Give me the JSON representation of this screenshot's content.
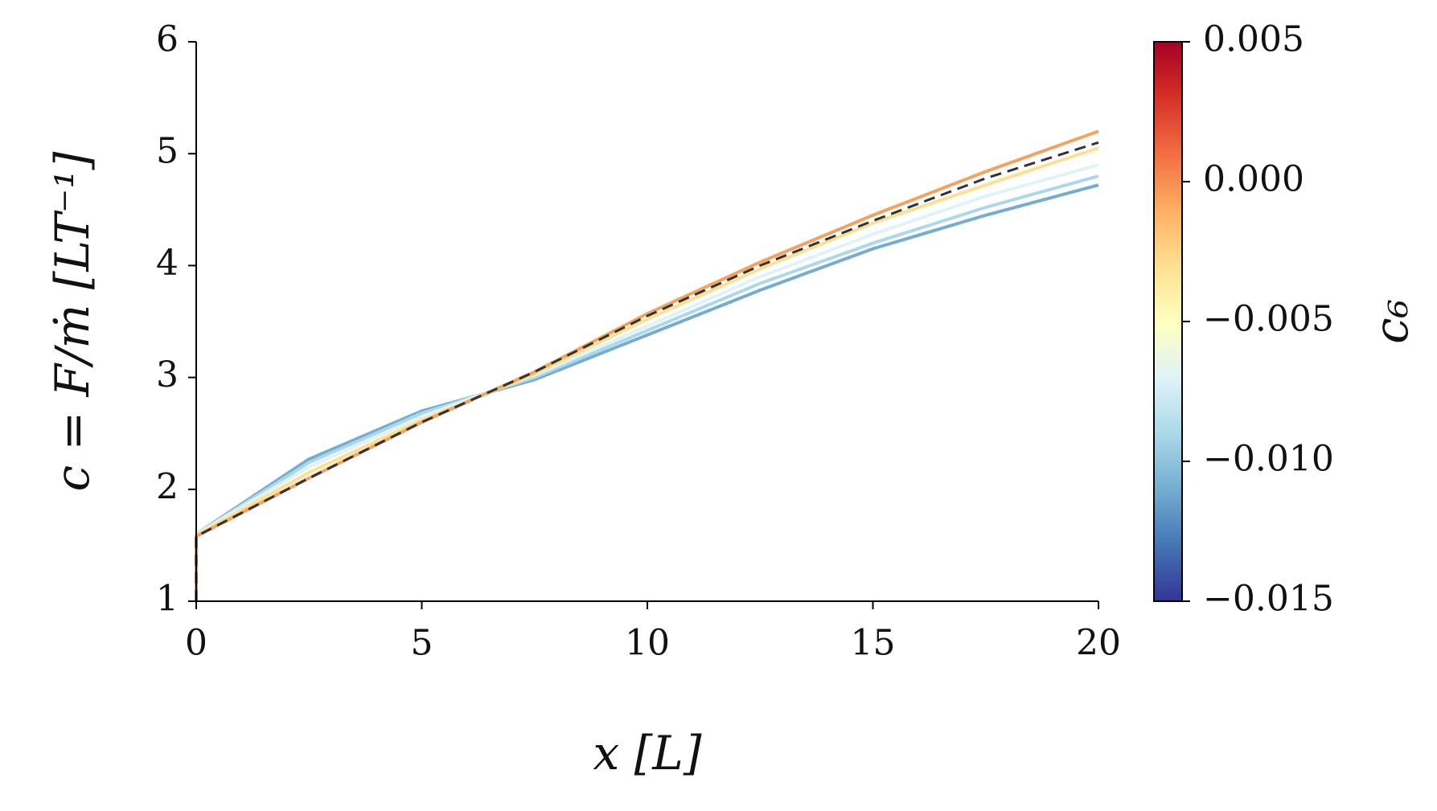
{
  "chart_data": {
    "type": "line",
    "x_label": "x [L]",
    "y_label": "c = F/ṁ [LT⁻¹]",
    "x": [
      0,
      0,
      2.5,
      5,
      7.5,
      10,
      12.5,
      15,
      17.5,
      20
    ],
    "series": [
      {
        "color": "#74add1",
        "values": [
          1,
          1.6,
          2.27,
          2.7,
          2.98,
          3.38,
          3.78,
          4.15,
          4.45,
          4.72
        ]
      },
      {
        "color": "#abd9e9",
        "values": [
          1,
          1.6,
          2.24,
          2.68,
          3.0,
          3.42,
          3.84,
          4.2,
          4.52,
          4.8
        ]
      },
      {
        "color": "#e0f3f8",
        "values": [
          1,
          1.6,
          2.2,
          2.65,
          3.02,
          3.46,
          3.9,
          4.28,
          4.62,
          4.9
        ]
      },
      {
        "color": "#fee090",
        "values": [
          1,
          1.59,
          2.15,
          2.62,
          3.03,
          3.52,
          3.97,
          4.38,
          4.72,
          5.05
        ]
      },
      {
        "color": "#f4a25f",
        "values": [
          1,
          1.58,
          2.1,
          2.6,
          3.05,
          3.57,
          4.03,
          4.45,
          4.84,
          5.2
        ]
      },
      {
        "color": "#333333",
        "dashed": true,
        "values": [
          1,
          1.58,
          2.1,
          2.6,
          3.05,
          3.55,
          4.0,
          4.4,
          4.78,
          5.1
        ]
      }
    ],
    "xlim": [
      0,
      20
    ],
    "xticks": [
      0,
      5,
      10,
      15,
      20
    ],
    "ylim": [
      1,
      6
    ],
    "yticks": [
      1,
      2,
      3,
      4,
      5,
      6
    ],
    "colorbar": {
      "label": "c₆",
      "lim": [
        -0.015,
        0.005
      ],
      "colors": [
        "#313695",
        "#4575b4",
        "#74add1",
        "#abd9e9",
        "#e0f3f8",
        "#ffffbf",
        "#fee090",
        "#fdae61",
        "#f46d43",
        "#d73027",
        "#a50026"
      ],
      "ticks": [
        {
          "value": 0.005,
          "label": "0.005"
        },
        {
          "value": 0,
          "label": "0.000"
        },
        {
          "value": -0.005,
          "label": "−0.005"
        },
        {
          "value": -0.01,
          "label": "−0.010"
        },
        {
          "value": -0.015,
          "label": "−0.015"
        }
      ]
    }
  }
}
